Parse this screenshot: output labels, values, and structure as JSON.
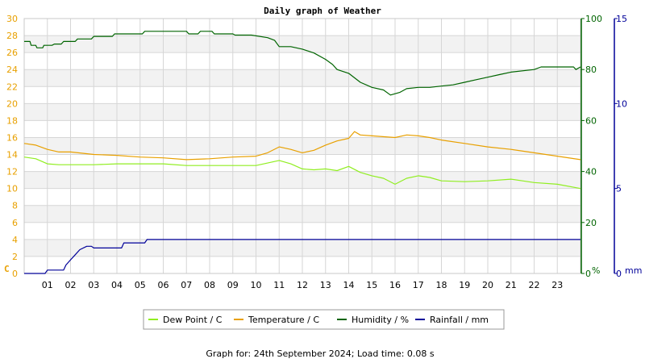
{
  "chart_data": {
    "type": "line",
    "title": "Daily graph of Weather",
    "footer": "Graph for: 24th September 2024; Load time: 0.08 s",
    "grid": true,
    "legend_position": "bottom",
    "x_tick_labels": [
      "01",
      "02",
      "03",
      "04",
      "05",
      "06",
      "07",
      "08",
      "09",
      "10",
      "11",
      "12",
      "13",
      "14",
      "15",
      "16",
      "17",
      "18",
      "19",
      "20",
      "21",
      "22",
      "23"
    ],
    "x_unit": "hour",
    "x_range": [
      0,
      24
    ],
    "axes": {
      "temperature": {
        "unit_label": "C",
        "range": [
          0,
          30
        ],
        "tick_labels": [
          "0",
          "2",
          "4",
          "6",
          "8",
          "10",
          "12",
          "14",
          "16",
          "18",
          "20",
          "22",
          "24",
          "26",
          "28",
          "30"
        ],
        "color": "#e8a000"
      },
      "humidity": {
        "unit_label": "%",
        "range": [
          0,
          100
        ],
        "tick_labels": [
          "0",
          "20",
          "40",
          "60",
          "80",
          "100"
        ],
        "color": "#006400"
      },
      "rainfall": {
        "unit_label": "mm",
        "range": [
          0,
          15
        ],
        "tick_labels": [
          "0",
          "5",
          "10",
          "15"
        ],
        "color": "#000099"
      }
    },
    "series": [
      {
        "name": "Dew Point / C",
        "axis": "temperature",
        "color": "#90ee20",
        "points": [
          [
            0,
            13.7
          ],
          [
            0.5,
            13.5
          ],
          [
            1,
            12.9
          ],
          [
            1.5,
            12.8
          ],
          [
            2,
            12.8
          ],
          [
            3,
            12.8
          ],
          [
            4,
            12.9
          ],
          [
            5,
            12.9
          ],
          [
            6,
            12.9
          ],
          [
            7,
            12.7
          ],
          [
            8,
            12.7
          ],
          [
            9,
            12.7
          ],
          [
            10,
            12.7
          ],
          [
            10.5,
            13.0
          ],
          [
            11,
            13.3
          ],
          [
            11.5,
            12.9
          ],
          [
            12,
            12.3
          ],
          [
            12.5,
            12.2
          ],
          [
            13,
            12.3
          ],
          [
            13.5,
            12.1
          ],
          [
            14,
            12.6
          ],
          [
            14.5,
            11.9
          ],
          [
            15,
            11.5
          ],
          [
            15.5,
            11.2
          ],
          [
            16,
            10.5
          ],
          [
            16.5,
            11.2
          ],
          [
            17,
            11.5
          ],
          [
            17.5,
            11.3
          ],
          [
            18,
            10.9
          ],
          [
            19,
            10.8
          ],
          [
            20,
            10.9
          ],
          [
            21,
            11.1
          ],
          [
            21.5,
            10.9
          ],
          [
            22,
            10.7
          ],
          [
            23,
            10.5
          ],
          [
            24,
            10.0
          ]
        ]
      },
      {
        "name": "Temperature / C",
        "axis": "temperature",
        "color": "#e8a000",
        "points": [
          [
            0,
            15.3
          ],
          [
            0.5,
            15.1
          ],
          [
            1,
            14.6
          ],
          [
            1.5,
            14.3
          ],
          [
            2,
            14.3
          ],
          [
            3,
            14.0
          ],
          [
            4,
            13.9
          ],
          [
            5,
            13.7
          ],
          [
            6,
            13.6
          ],
          [
            7,
            13.4
          ],
          [
            8,
            13.5
          ],
          [
            9,
            13.7
          ],
          [
            10,
            13.8
          ],
          [
            10.5,
            14.2
          ],
          [
            11,
            14.9
          ],
          [
            11.5,
            14.6
          ],
          [
            12,
            14.2
          ],
          [
            12.5,
            14.5
          ],
          [
            13,
            15.1
          ],
          [
            13.5,
            15.6
          ],
          [
            14,
            15.9
          ],
          [
            14.25,
            16.7
          ],
          [
            14.5,
            16.3
          ],
          [
            15,
            16.2
          ],
          [
            16,
            16.0
          ],
          [
            16.5,
            16.3
          ],
          [
            17,
            16.2
          ],
          [
            17.5,
            16.0
          ],
          [
            18,
            15.7
          ],
          [
            19,
            15.3
          ],
          [
            20,
            14.9
          ],
          [
            21,
            14.6
          ],
          [
            22,
            14.2
          ],
          [
            23,
            13.8
          ],
          [
            24,
            13.4
          ]
        ]
      },
      {
        "name": "Humidity / %",
        "axis": "humidity",
        "color": "#006400",
        "points": [
          [
            0,
            91.0
          ],
          [
            0.25,
            91.0
          ],
          [
            0.3,
            89.5
          ],
          [
            0.5,
            89.5
          ],
          [
            0.55,
            88.5
          ],
          [
            0.8,
            88.5
          ],
          [
            0.85,
            89.5
          ],
          [
            1.2,
            89.5
          ],
          [
            1.3,
            90.0
          ],
          [
            1.6,
            90.0
          ],
          [
            1.7,
            91.0
          ],
          [
            2.2,
            91.0
          ],
          [
            2.3,
            92.0
          ],
          [
            2.9,
            92.0
          ],
          [
            3,
            93.0
          ],
          [
            3.8,
            93.0
          ],
          [
            3.9,
            94.0
          ],
          [
            5.1,
            94.0
          ],
          [
            5.2,
            95.0
          ],
          [
            7,
            95.0
          ],
          [
            7.1,
            94.0
          ],
          [
            7.5,
            94.0
          ],
          [
            7.6,
            95.0
          ],
          [
            8.1,
            95.0
          ],
          [
            8.2,
            94.0
          ],
          [
            9,
            94.0
          ],
          [
            9.1,
            93.5
          ],
          [
            9.8,
            93.5
          ],
          [
            10.5,
            92.5
          ],
          [
            10.8,
            91.5
          ],
          [
            11.0,
            89.0
          ],
          [
            11.5,
            89.0
          ],
          [
            12,
            88.0
          ],
          [
            12.5,
            86.5
          ],
          [
            13,
            84.0
          ],
          [
            13.3,
            82.0
          ],
          [
            13.5,
            80.0
          ],
          [
            14,
            78.5
          ],
          [
            14.5,
            75.0
          ],
          [
            15,
            73.0
          ],
          [
            15.5,
            72.0
          ],
          [
            15.8,
            70.0
          ],
          [
            16.2,
            71.0
          ],
          [
            16.5,
            72.5
          ],
          [
            17,
            73.0
          ],
          [
            17.5,
            73.0
          ],
          [
            18,
            73.5
          ],
          [
            18.5,
            74.0
          ],
          [
            19,
            75.0
          ],
          [
            19.5,
            76.0
          ],
          [
            20,
            77.0
          ],
          [
            20.5,
            78.0
          ],
          [
            21,
            79.0
          ],
          [
            22,
            80.0
          ],
          [
            22.3,
            81.0
          ],
          [
            23,
            81.0
          ],
          [
            23.7,
            81.0
          ],
          [
            23.8,
            80.0
          ],
          [
            24,
            81.0
          ]
        ]
      },
      {
        "name": "Rainfall / mm",
        "axis": "rainfall",
        "color": "#000099",
        "points": [
          [
            0,
            0
          ],
          [
            0.9,
            0
          ],
          [
            1.0,
            0.2
          ],
          [
            1.7,
            0.2
          ],
          [
            1.8,
            0.5
          ],
          [
            2.0,
            0.8
          ],
          [
            2.2,
            1.1
          ],
          [
            2.4,
            1.4
          ],
          [
            2.7,
            1.6
          ],
          [
            2.9,
            1.6
          ],
          [
            3.0,
            1.5
          ],
          [
            3.05,
            1.5
          ],
          [
            3.1,
            1.5
          ],
          [
            4.2,
            1.5
          ],
          [
            4.3,
            1.8
          ],
          [
            5.2,
            1.8
          ],
          [
            5.3,
            2.0
          ],
          [
            24,
            2.0
          ]
        ]
      }
    ]
  }
}
